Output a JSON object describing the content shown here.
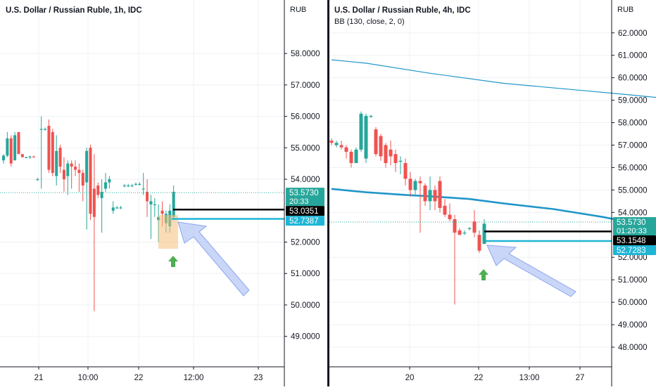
{
  "chart_data": [
    {
      "type": "candlestick",
      "title": "U.S. Dollar / Russian Ruble, 1h, IDC",
      "currency_label": "RUB",
      "ylim": [
        48.3,
        59.3
      ],
      "y_ticks": [
        "58.0000",
        "57.0000",
        "56.0000",
        "55.0000",
        "54.0000",
        "52.0000",
        "51.0000",
        "50.0000",
        "49.0000"
      ],
      "x_ticks": [
        "21",
        "10:00",
        "22",
        "12:00",
        "23"
      ],
      "price_tags": [
        {
          "value": 53.573,
          "text": "53.5730",
          "sub": "20:33",
          "style": "teal"
        },
        {
          "value": 53.0351,
          "text": "53.0351",
          "style": "black"
        },
        {
          "value": 52.7387,
          "text": "52.7387",
          "style": "cyan"
        }
      ],
      "candles": [
        [
          54.6,
          54.8,
          54.5,
          54.75
        ],
        [
          54.75,
          55.5,
          54.7,
          55.3
        ],
        [
          55.3,
          55.4,
          54.4,
          54.5
        ],
        [
          54.6,
          55.5,
          54.6,
          55.4
        ],
        [
          55.5,
          55.5,
          54.8,
          54.8
        ],
        [
          54.8,
          54.8,
          54.7,
          54.7
        ],
        [
          54.7,
          54.72,
          54.68,
          54.7
        ],
        [
          54.7,
          54.75,
          54.65,
          54.72
        ],
        [
          54.72,
          54.75,
          54.7,
          54.7
        ],
        [
          54.0,
          54.05,
          53.95,
          54.0
        ],
        [
          55.6,
          56.0,
          53.7,
          55.6
        ],
        [
          55.6,
          55.65,
          55.55,
          55.6
        ],
        [
          55.7,
          55.9,
          54.2,
          54.3
        ],
        [
          55.5,
          55.6,
          54.1,
          54.2
        ],
        [
          54.1,
          55.4,
          53.8,
          54.9
        ],
        [
          55.0,
          55.1,
          54.2,
          54.4
        ],
        [
          54.3,
          54.7,
          53.6,
          54.0
        ],
        [
          54.1,
          54.6,
          53.5,
          54.5
        ],
        [
          54.5,
          54.6,
          53.7,
          54.4
        ],
        [
          54.4,
          54.6,
          54.1,
          54.3
        ],
        [
          54.3,
          54.5,
          53.6,
          54.2
        ],
        [
          54.2,
          54.3,
          53.3,
          53.8
        ],
        [
          53.9,
          55.0,
          52.4,
          54.9
        ],
        [
          55.0,
          55.1,
          52.7,
          52.9
        ],
        [
          53.7,
          54.8,
          49.8,
          52.8
        ],
        [
          53.8,
          53.9,
          53.4,
          53.5
        ],
        [
          53.4,
          54.0,
          52.3,
          53.6
        ],
        [
          53.7,
          54.2,
          53.6,
          53.9
        ],
        [
          53.9,
          54.1,
          53.7,
          54.0
        ],
        [
          53.0,
          53.3,
          52.9,
          53.1
        ],
        [
          53.1,
          53.15,
          53.05,
          53.1
        ],
        [
          53.1,
          53.15,
          53.05,
          53.1
        ],
        [
          53.8,
          53.85,
          53.75,
          53.8
        ],
        [
          53.8,
          53.85,
          53.75,
          53.8
        ],
        [
          53.8,
          53.85,
          53.75,
          53.8
        ],
        [
          53.85,
          53.9,
          53.8,
          53.85
        ],
        [
          53.85,
          53.9,
          53.8,
          53.85
        ],
        [
          53.7,
          54.2,
          53.5,
          53.7
        ],
        [
          53.6,
          54.0,
          52.8,
          53.3
        ],
        [
          53.2,
          53.5,
          52.1,
          53.3
        ],
        [
          53.2,
          53.4,
          52.8,
          53.2
        ],
        [
          52.7,
          53.2,
          52.0,
          52.8
        ],
        [
          53.0,
          53.3,
          52.5,
          52.9
        ],
        [
          52.6,
          53.0,
          52.3,
          52.9
        ],
        [
          52.5,
          53.2,
          52.3,
          53.0
        ],
        [
          52.8,
          53.8,
          52.7,
          53.6
        ]
      ]
    },
    {
      "type": "candlestick",
      "title": "U.S. Dollar / Russian Ruble, 4h, IDC",
      "subtitle": "BB (130, close, 2, 0)",
      "currency_label": "RUB",
      "ylim": [
        47.5,
        62.9
      ],
      "y_ticks": [
        "62.0000",
        "61.0000",
        "60.0000",
        "59.0000",
        "58.0000",
        "57.0000",
        "56.0000",
        "55.0000",
        "54.0000",
        "52.0000",
        "51.0000",
        "50.0000",
        "49.0000",
        "48.0000"
      ],
      "x_ticks": [
        "20",
        "22",
        "13:00",
        "27"
      ],
      "price_tags": [
        {
          "value": 53.573,
          "text": "53.5730",
          "sub": "01:20:33",
          "style": "teal"
        },
        {
          "value": 53.1548,
          "text": "53.1548",
          "style": "black"
        },
        {
          "value": 52.7283,
          "text": "52.7283",
          "style": "cyan"
        }
      ],
      "candles": [
        [
          57.2,
          57.3,
          57.0,
          57.1
        ],
        [
          57.0,
          57.2,
          56.9,
          57.1
        ],
        [
          57.0,
          57.2,
          56.8,
          56.9
        ],
        [
          56.9,
          57.0,
          56.4,
          56.7
        ],
        [
          56.7,
          56.8,
          56.0,
          56.2
        ],
        [
          56.2,
          56.9,
          56.2,
          56.8
        ],
        [
          56.8,
          58.5,
          56.7,
          58.4
        ],
        [
          56.4,
          58.4,
          56.2,
          58.3
        ],
        [
          58.3,
          58.35,
          58.2,
          58.3
        ],
        [
          57.7,
          57.8,
          56.5,
          56.6
        ],
        [
          57.4,
          57.5,
          56.3,
          56.5
        ],
        [
          57.0,
          57.1,
          56.0,
          56.2
        ],
        [
          56.8,
          57.2,
          56.1,
          56.5
        ],
        [
          56.6,
          56.8,
          55.8,
          56.2
        ],
        [
          56.3,
          56.5,
          55.7,
          56.3
        ],
        [
          56.2,
          56.4,
          55.2,
          55.5
        ],
        [
          55.5,
          55.8,
          54.7,
          55.0
        ],
        [
          55.0,
          55.5,
          54.8,
          55.4
        ],
        [
          55.4,
          55.6,
          53.1,
          55.3
        ],
        [
          55.2,
          55.3,
          54.3,
          54.5
        ],
        [
          54.5,
          55.6,
          54.1,
          55.0
        ],
        [
          55.0,
          55.2,
          54.1,
          54.5
        ],
        [
          55.4,
          55.6,
          54.0,
          54.2
        ],
        [
          54.3,
          54.6,
          53.8,
          53.9
        ],
        [
          53.9,
          54.4,
          53.6,
          53.7
        ],
        [
          53.7,
          53.9,
          49.9,
          53.1
        ],
        [
          53.2,
          53.3,
          53.0,
          53.0
        ],
        [
          53.1,
          53.2,
          53.0,
          53.1
        ],
        [
          53.3,
          53.35,
          53.2,
          53.3
        ],
        [
          53.6,
          54.1,
          52.9,
          53.1
        ],
        [
          53.0,
          53.2,
          52.2,
          52.3
        ],
        [
          52.6,
          53.7,
          52.6,
          53.5
        ]
      ],
      "bb_upper": [
        [
          0,
          60.8
        ],
        [
          7,
          60.65
        ],
        [
          20,
          60.2
        ],
        [
          35,
          59.75
        ],
        [
          50,
          59.45
        ],
        [
          60,
          59.25
        ],
        [
          67,
          59.1
        ],
        [
          72,
          59.02
        ],
        [
          78,
          58.98
        ]
      ],
      "bb_basis": [
        [
          0,
          55.05
        ],
        [
          7,
          54.9
        ],
        [
          15,
          54.78
        ],
        [
          20,
          54.72
        ],
        [
          28,
          54.6
        ],
        [
          35,
          54.4
        ],
        [
          45,
          54.15
        ],
        [
          55,
          53.8
        ],
        [
          62,
          53.5
        ],
        [
          70,
          53.15
        ],
        [
          75,
          52.95
        ],
        [
          80,
          52.72
        ]
      ]
    }
  ]
}
